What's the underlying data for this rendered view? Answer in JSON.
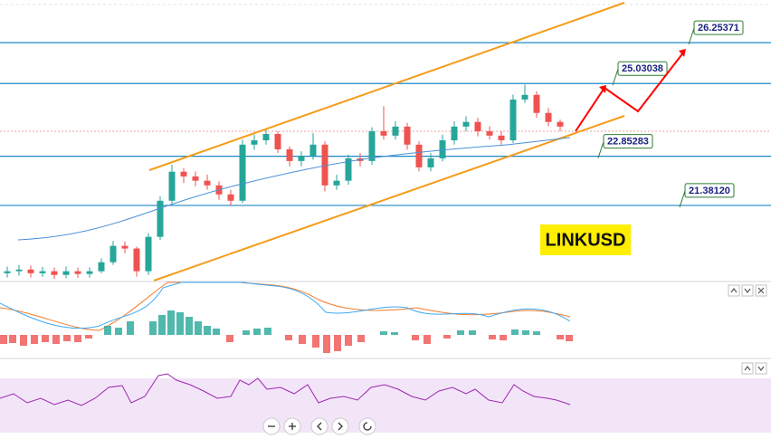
{
  "chart_data": {
    "type": "candlestick",
    "title": "LINKUSD",
    "ylim": [
      19.13,
      27.53
    ],
    "levels": [
      26.25371,
      25.03038,
      22.85283,
      {
        "value": 21.3812,
        "label": "21.38120"
      }
    ],
    "up_color": "#26a69a",
    "down_color": "#ef5350",
    "level_color": "#1e88c8",
    "open": [
      19.35,
      19.41,
      19.46,
      19.35,
      19.41,
      19.3,
      19.41,
      19.33,
      19.41,
      19.68,
      20.17,
      20.09,
      19.41,
      20.44,
      21.52,
      22.39,
      22.25,
      22.12,
      21.98,
      21.71,
      21.52,
      23.2,
      23.33,
      23.52,
      23.06,
      22.71,
      22.87,
      23.2,
      21.98,
      22.12,
      22.79,
      22.71,
      23.6,
      23.47,
      23.74,
      23.2,
      22.52,
      22.79,
      23.33,
      23.74,
      23.88,
      23.6,
      23.47,
      23.33,
      24.55,
      24.69,
      24.15,
      23.88
    ],
    "high": [
      19.55,
      19.6,
      19.58,
      19.54,
      19.52,
      19.55,
      19.52,
      19.53,
      19.8,
      20.32,
      20.3,
      20.15,
      20.55,
      21.65,
      22.6,
      22.5,
      22.4,
      22.3,
      22.1,
      21.85,
      23.35,
      23.5,
      23.68,
      23.6,
      23.15,
      23.0,
      23.55,
      23.3,
      22.3,
      22.9,
      22.95,
      23.72,
      24.35,
      23.9,
      23.85,
      23.3,
      22.95,
      23.5,
      23.9,
      24.05,
      24.0,
      23.75,
      23.6,
      24.7,
      25.0,
      24.8,
      24.3,
      23.95
    ],
    "low": [
      19.22,
      19.28,
      19.22,
      19.24,
      19.18,
      19.2,
      19.21,
      19.22,
      19.35,
      19.6,
      19.95,
      19.25,
      19.3,
      20.35,
      21.4,
      22.05,
      21.95,
      21.85,
      21.55,
      21.38,
      21.45,
      23.05,
      23.2,
      22.95,
      22.55,
      22.55,
      22.75,
      21.8,
      21.85,
      22.0,
      22.55,
      22.6,
      23.35,
      23.35,
      23.05,
      22.4,
      22.4,
      22.7,
      23.2,
      23.6,
      23.45,
      23.35,
      23.2,
      23.25,
      24.45,
      24.0,
      23.75,
      23.6
    ],
    "close": [
      19.41,
      19.46,
      19.35,
      19.41,
      19.3,
      19.41,
      19.33,
      19.41,
      19.68,
      20.17,
      20.09,
      19.41,
      20.44,
      21.52,
      22.39,
      22.25,
      22.12,
      21.98,
      21.71,
      21.52,
      23.2,
      23.33,
      23.52,
      23.06,
      22.71,
      22.87,
      23.2,
      21.98,
      22.12,
      22.79,
      22.71,
      23.6,
      23.47,
      23.74,
      23.2,
      22.52,
      22.79,
      23.33,
      23.74,
      23.88,
      23.6,
      23.47,
      23.33,
      24.55,
      24.69,
      24.15,
      23.88,
      23.74
    ]
  }
}
